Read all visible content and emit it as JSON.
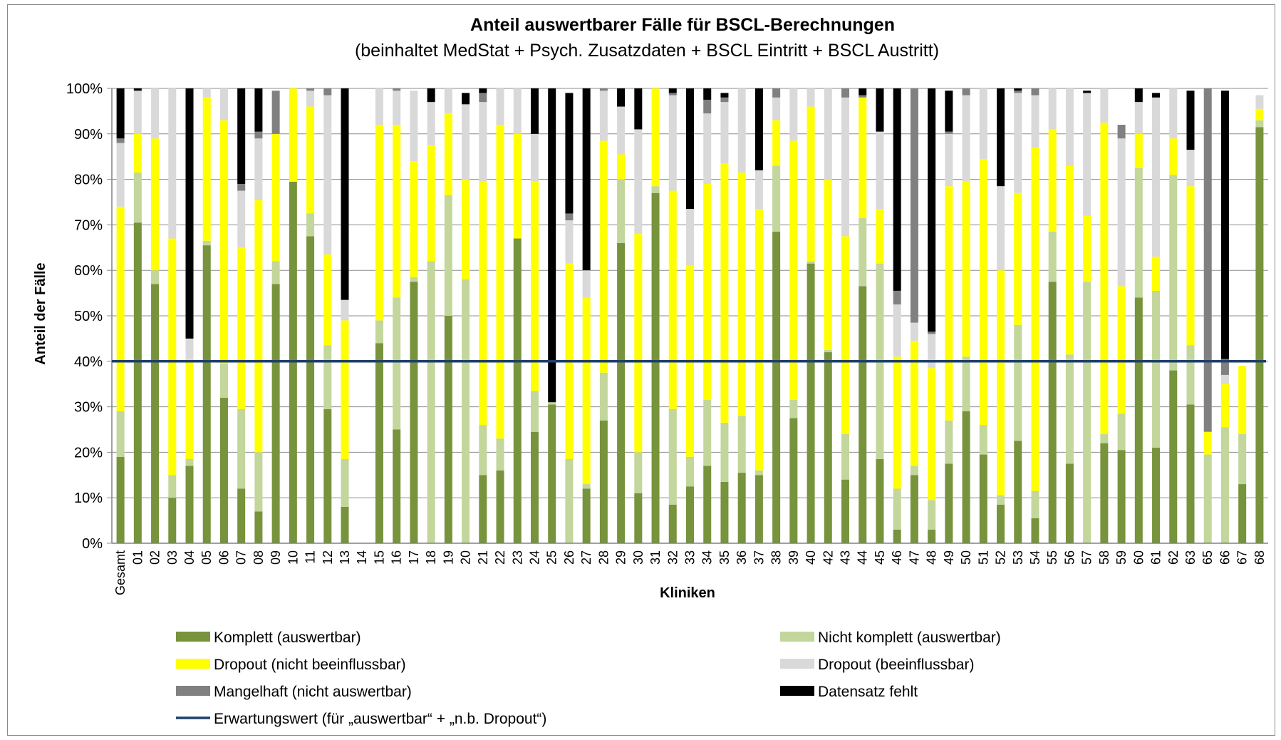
{
  "chart_data": {
    "type": "bar",
    "stacked": true,
    "title": "Anteil auswertbarer  Fälle für BSCL-Berechnungen",
    "subtitle": "(beinhaltet MedStat + Psych. Zusatzdaten + BSCL Eintritt + BSCL Austritt)",
    "xlabel": "Kliniken",
    "ylabel": "Anteil der  Fälle",
    "ylim": [
      0,
      100
    ],
    "yticks": [
      "0%",
      "10%",
      "20%",
      "30%",
      "40%",
      "50%",
      "60%",
      "70%",
      "80%",
      "90%",
      "100%"
    ],
    "grid": true,
    "legend_position": "bottom",
    "categories": [
      "Gesamt",
      "01",
      "02",
      "03",
      "04",
      "05",
      "06",
      "07",
      "08",
      "09",
      "10",
      "11",
      "12",
      "13",
      "14",
      "15",
      "16",
      "17",
      "18",
      "19",
      "20",
      "21",
      "22",
      "23",
      "24",
      "25",
      "26",
      "27",
      "28",
      "29",
      "30",
      "31",
      "32",
      "33",
      "34",
      "35",
      "36",
      "37",
      "38",
      "39",
      "40",
      "42",
      "43",
      "44",
      "45",
      "46",
      "47",
      "48",
      "49",
      "50",
      "51",
      "52",
      "53",
      "54",
      "55",
      "56",
      "57",
      "58",
      "59",
      "60",
      "61",
      "62",
      "63",
      "65",
      "66",
      "67",
      "68"
    ],
    "series": [
      {
        "name": "Komplett (auswertbar)",
        "color": "#77933c",
        "values": [
          19,
          70.5,
          57,
          10,
          17,
          65.5,
          32,
          12,
          7,
          57,
          79.5,
          67.5,
          29.5,
          8,
          0,
          44,
          25,
          57.5,
          0,
          50,
          0,
          15,
          16,
          67,
          24.5,
          30.5,
          0,
          12,
          27,
          66,
          11,
          77,
          8.5,
          12.5,
          17,
          13.5,
          15.5,
          15,
          68.5,
          27.5,
          61.5,
          42,
          14,
          56.5,
          18.5,
          3,
          15,
          3,
          17.5,
          29,
          19.5,
          8.5,
          22.5,
          5.5,
          57.5,
          17.5,
          0,
          22,
          20.5,
          54,
          21,
          38,
          30.5,
          0,
          0,
          13,
          91.5
        ]
      },
      {
        "name": "Nicht komplett (auswertbar)",
        "color": "#c3d69b",
        "values": [
          10,
          11,
          3,
          5,
          1.5,
          1,
          7.5,
          17.5,
          13,
          5,
          0,
          5,
          14,
          10.5,
          0,
          5,
          29,
          1,
          62,
          26.5,
          58,
          11,
          7,
          0,
          9,
          0.5,
          18.5,
          1,
          10.5,
          14,
          9,
          1.5,
          21,
          6.5,
          14.5,
          13,
          12.5,
          1,
          14.5,
          4,
          0.5,
          0.5,
          10,
          15,
          43,
          9,
          2,
          6.5,
          9.5,
          12,
          6.5,
          2,
          25.5,
          6,
          11,
          24,
          57.5,
          2,
          8,
          28.5,
          34.5,
          43,
          13,
          19.5,
          25.5,
          11,
          1.5
        ]
      },
      {
        "name": "Dropout (nicht beeinflussbar)",
        "color": "#ffff00",
        "values": [
          45,
          8.5,
          29,
          52,
          22,
          31.5,
          53.5,
          35.5,
          55.5,
          28,
          20.5,
          23.5,
          20,
          30.5,
          0,
          43,
          38,
          25.5,
          25.5,
          18,
          22,
          53.5,
          69,
          23,
          46,
          0,
          43,
          41,
          51,
          5.5,
          48,
          21.5,
          48,
          42,
          47.5,
          57,
          53.5,
          57.5,
          10,
          57,
          34,
          37.5,
          43.5,
          26.5,
          12,
          29,
          27.5,
          29,
          51.5,
          38.5,
          58.5,
          49.5,
          29,
          75.5,
          22.5,
          41.5,
          14.5,
          68.5,
          28,
          7.5,
          7.5,
          8,
          35,
          5,
          9.5,
          15,
          2.5
        ]
      },
      {
        "name": "Dropout (beeinflussbar)",
        "color": "#d9d9d9",
        "values": [
          14,
          9.5,
          11,
          33,
          4.5,
          2,
          7,
          12.5,
          13.5,
          0,
          0,
          3.5,
          35,
          4.5,
          0,
          8,
          7.5,
          15.5,
          9.5,
          5.5,
          16.5,
          17.5,
          8,
          10,
          10.5,
          0,
          9.5,
          6,
          11,
          10.5,
          23,
          0,
          21,
          12.5,
          15.5,
          13.5,
          18.5,
          8.5,
          5,
          11.5,
          4,
          20,
          30.5,
          0,
          17,
          11.5,
          4,
          7.5,
          11.5,
          19,
          15.5,
          18.5,
          22,
          11.5,
          9,
          17,
          27,
          7.5,
          32.5,
          7,
          35,
          11,
          8,
          0,
          2,
          0,
          3
        ]
      },
      {
        "name": "Mangelhaft (nicht auswertbar)",
        "color": "#808080",
        "values": [
          1,
          0,
          0,
          0,
          0,
          0,
          0,
          1.5,
          1.5,
          9.5,
          0,
          0.5,
          1.5,
          0,
          0,
          0,
          0.5,
          0,
          0,
          0,
          0,
          2,
          0,
          0,
          0,
          0,
          1.5,
          0,
          0.5,
          0,
          0,
          0,
          0.5,
          0,
          3,
          1,
          0.5,
          0,
          2,
          0,
          0,
          0,
          2,
          0.5,
          0,
          3,
          51.5,
          0.5,
          0.5,
          1.5,
          0,
          0,
          0.5,
          1.5,
          0.5,
          0,
          0,
          0,
          3,
          0,
          0,
          0,
          0,
          75.5,
          3.5,
          0,
          0
        ]
      },
      {
        "name": "Datensatz fehlt",
        "color": "#000000",
        "values": [
          11,
          0.5,
          0,
          0,
          55,
          0,
          0,
          21,
          9.5,
          0,
          0,
          0,
          0,
          46.5,
          0,
          0,
          0,
          0,
          3,
          0,
          2.5,
          1,
          0,
          0,
          10,
          69,
          26.5,
          40,
          0,
          4,
          9,
          0,
          1,
          26.5,
          2.5,
          1,
          0,
          18,
          0,
          0,
          0,
          0,
          0,
          1.5,
          9.5,
          44.5,
          0,
          54,
          9,
          0,
          0,
          21.5,
          1,
          0,
          0,
          0,
          0.5,
          0,
          0,
          3,
          1,
          0,
          13,
          0,
          59,
          0,
          0
        ]
      }
    ],
    "reference_line": {
      "name": "Erwartungswert (für „auswertbar“ + „n.b. Dropout“)",
      "value": 40,
      "color": "#1f3f6b"
    }
  }
}
